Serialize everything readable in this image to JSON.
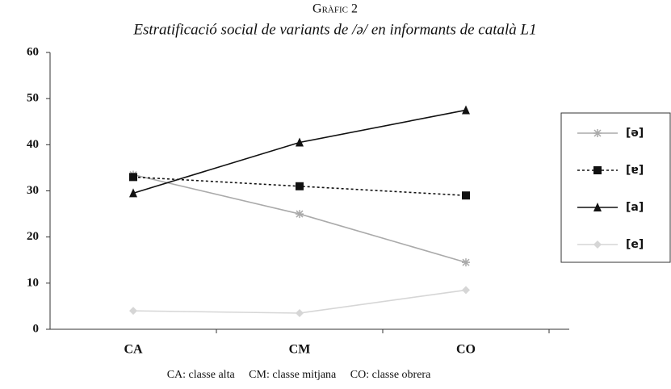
{
  "chart_data": {
    "type": "line",
    "title": "Gràfic 2",
    "subtitle": "Estratificació social de variants de /ə/ en informants de català L1",
    "categories": [
      "CA",
      "CM",
      "CO"
    ],
    "series": [
      {
        "name": "[ə]",
        "color": "#aaaaaa",
        "line_style": "solid",
        "marker": "asterisk",
        "values": [
          33.5,
          25,
          14.5
        ]
      },
      {
        "name": "[ɐ]",
        "color": "#111111",
        "line_style": "dotted",
        "marker": "square",
        "values": [
          33,
          31,
          29
        ]
      },
      {
        "name": "[a]",
        "color": "#111111",
        "line_style": "solid",
        "marker": "triangle",
        "values": [
          29.5,
          40.5,
          47.5
        ]
      },
      {
        "name": "[e]",
        "color": "#d6d6d6",
        "line_style": "solid",
        "marker": "diamond",
        "values": [
          4,
          3.5,
          8.5
        ]
      }
    ],
    "ylim": [
      0,
      60
    ],
    "yticks": [
      0,
      10,
      20,
      30,
      40,
      50,
      60
    ],
    "grid": false,
    "legend": "right",
    "note": "CA: classe alta     CM: classe mitjana     CO: classe obrera"
  }
}
